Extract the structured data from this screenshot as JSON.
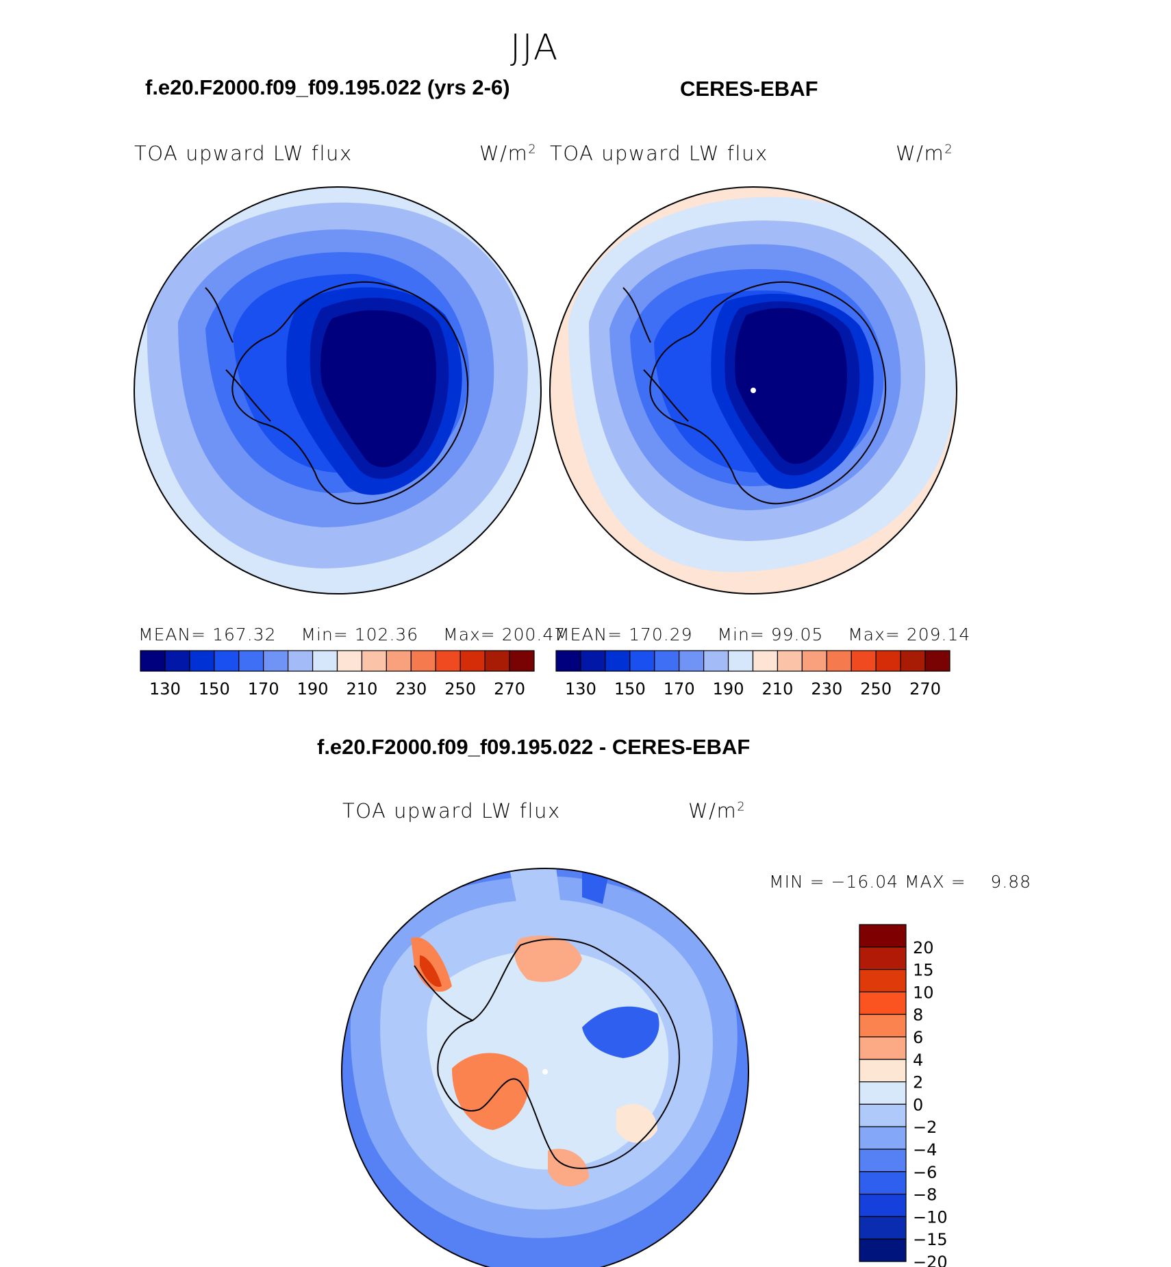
{
  "season": "JJA",
  "panels": [
    {
      "title": "f.e20.F2000.f09_f09.195.022 (yrs 2-6)",
      "variable": "TOA upward LW flux",
      "units_base": "W/m",
      "units_sup": "2",
      "stats": {
        "mean_label": "MEAN=",
        "mean": "167.32",
        "min_label": "Min=",
        "min": "102.36",
        "max_label": "Max=",
        "max": "200.47"
      }
    },
    {
      "title": "CERES-EBAF",
      "variable": "TOA upward LW flux",
      "units_base": "W/m",
      "units_sup": "2",
      "stats": {
        "mean_label": "MEAN=",
        "mean": "170.29",
        "min_label": "Min=",
        "min": "99.05",
        "max_label": "Max=",
        "max": "209.14"
      }
    }
  ],
  "diff_panel": {
    "title": "f.e20.F2000.f09_f09.195.022 - CERES-EBAF",
    "variable": "TOA upward LW flux",
    "units_base": "W/m",
    "units_sup": "2",
    "minmax_text": "MIN = −16.04 MAX =    9.88"
  },
  "chart_data": [
    {
      "type": "heatmap",
      "projection": "south-polar-stereographic",
      "title": "f.e20.F2000.f09_f09.195.022 (yrs 2-6)",
      "variable": "TOA upward LW flux",
      "units": "W/m2",
      "mean": 167.32,
      "min": 102.36,
      "max": 200.47,
      "colorbar_levels": [
        130,
        140,
        150,
        160,
        170,
        180,
        190,
        200,
        210,
        220,
        230,
        240,
        250,
        260,
        270
      ],
      "colorbar_tick_labels": [
        "130",
        "150",
        "170",
        "190",
        "210",
        "230",
        "250",
        "270"
      ],
      "colorbar_colors": [
        "#00007e",
        "#0017a7",
        "#0031d4",
        "#1a4ff0",
        "#3f6ff4",
        "#6f94f6",
        "#a3bcf8",
        "#d6e6fb",
        "#fde4d4",
        "#fbc4a8",
        "#f9a17c",
        "#f57a4e",
        "#f04b20",
        "#d42d08",
        "#a81b04",
        "#790303"
      ],
      "legend_placement": "bottom"
    },
    {
      "type": "heatmap",
      "projection": "south-polar-stereographic",
      "title": "CERES-EBAF",
      "variable": "TOA upward LW flux",
      "units": "W/m2",
      "mean": 170.29,
      "min": 99.05,
      "max": 209.14,
      "colorbar_levels": [
        130,
        140,
        150,
        160,
        170,
        180,
        190,
        200,
        210,
        220,
        230,
        240,
        250,
        260,
        270
      ],
      "colorbar_tick_labels": [
        "130",
        "150",
        "170",
        "190",
        "210",
        "230",
        "250",
        "270"
      ],
      "colorbar_colors": [
        "#00007e",
        "#0017a7",
        "#0031d4",
        "#1a4ff0",
        "#3f6ff4",
        "#6f94f6",
        "#a3bcf8",
        "#d6e6fb",
        "#fde4d4",
        "#fbc4a8",
        "#f9a17c",
        "#f57a4e",
        "#f04b20",
        "#d42d08",
        "#a81b04",
        "#790303"
      ],
      "legend_placement": "bottom"
    },
    {
      "type": "heatmap",
      "projection": "south-polar-stereographic",
      "title": "f.e20.F2000.f09_f09.195.022 - CERES-EBAF",
      "variable": "TOA upward LW flux",
      "units": "W/m2",
      "min": -16.04,
      "max": 9.88,
      "colorbar_tick_labels": [
        "20",
        "15",
        "10",
        "8",
        "6",
        "4",
        "2",
        "0",
        "−2",
        "−4",
        "−6",
        "−8",
        "−10",
        "−15",
        "−20"
      ],
      "colorbar_colors": [
        "#7e0000",
        "#b01a06",
        "#de3a0a",
        "#fb5420",
        "#fb8350",
        "#fbaa85",
        "#fde6d4",
        "#d6e8fa",
        "#afc9fa",
        "#84a8f7",
        "#5581f4",
        "#2f5fef",
        "#1640dc",
        "#0a2cb0",
        "#00147d"
      ],
      "legend_placement": "right"
    }
  ]
}
